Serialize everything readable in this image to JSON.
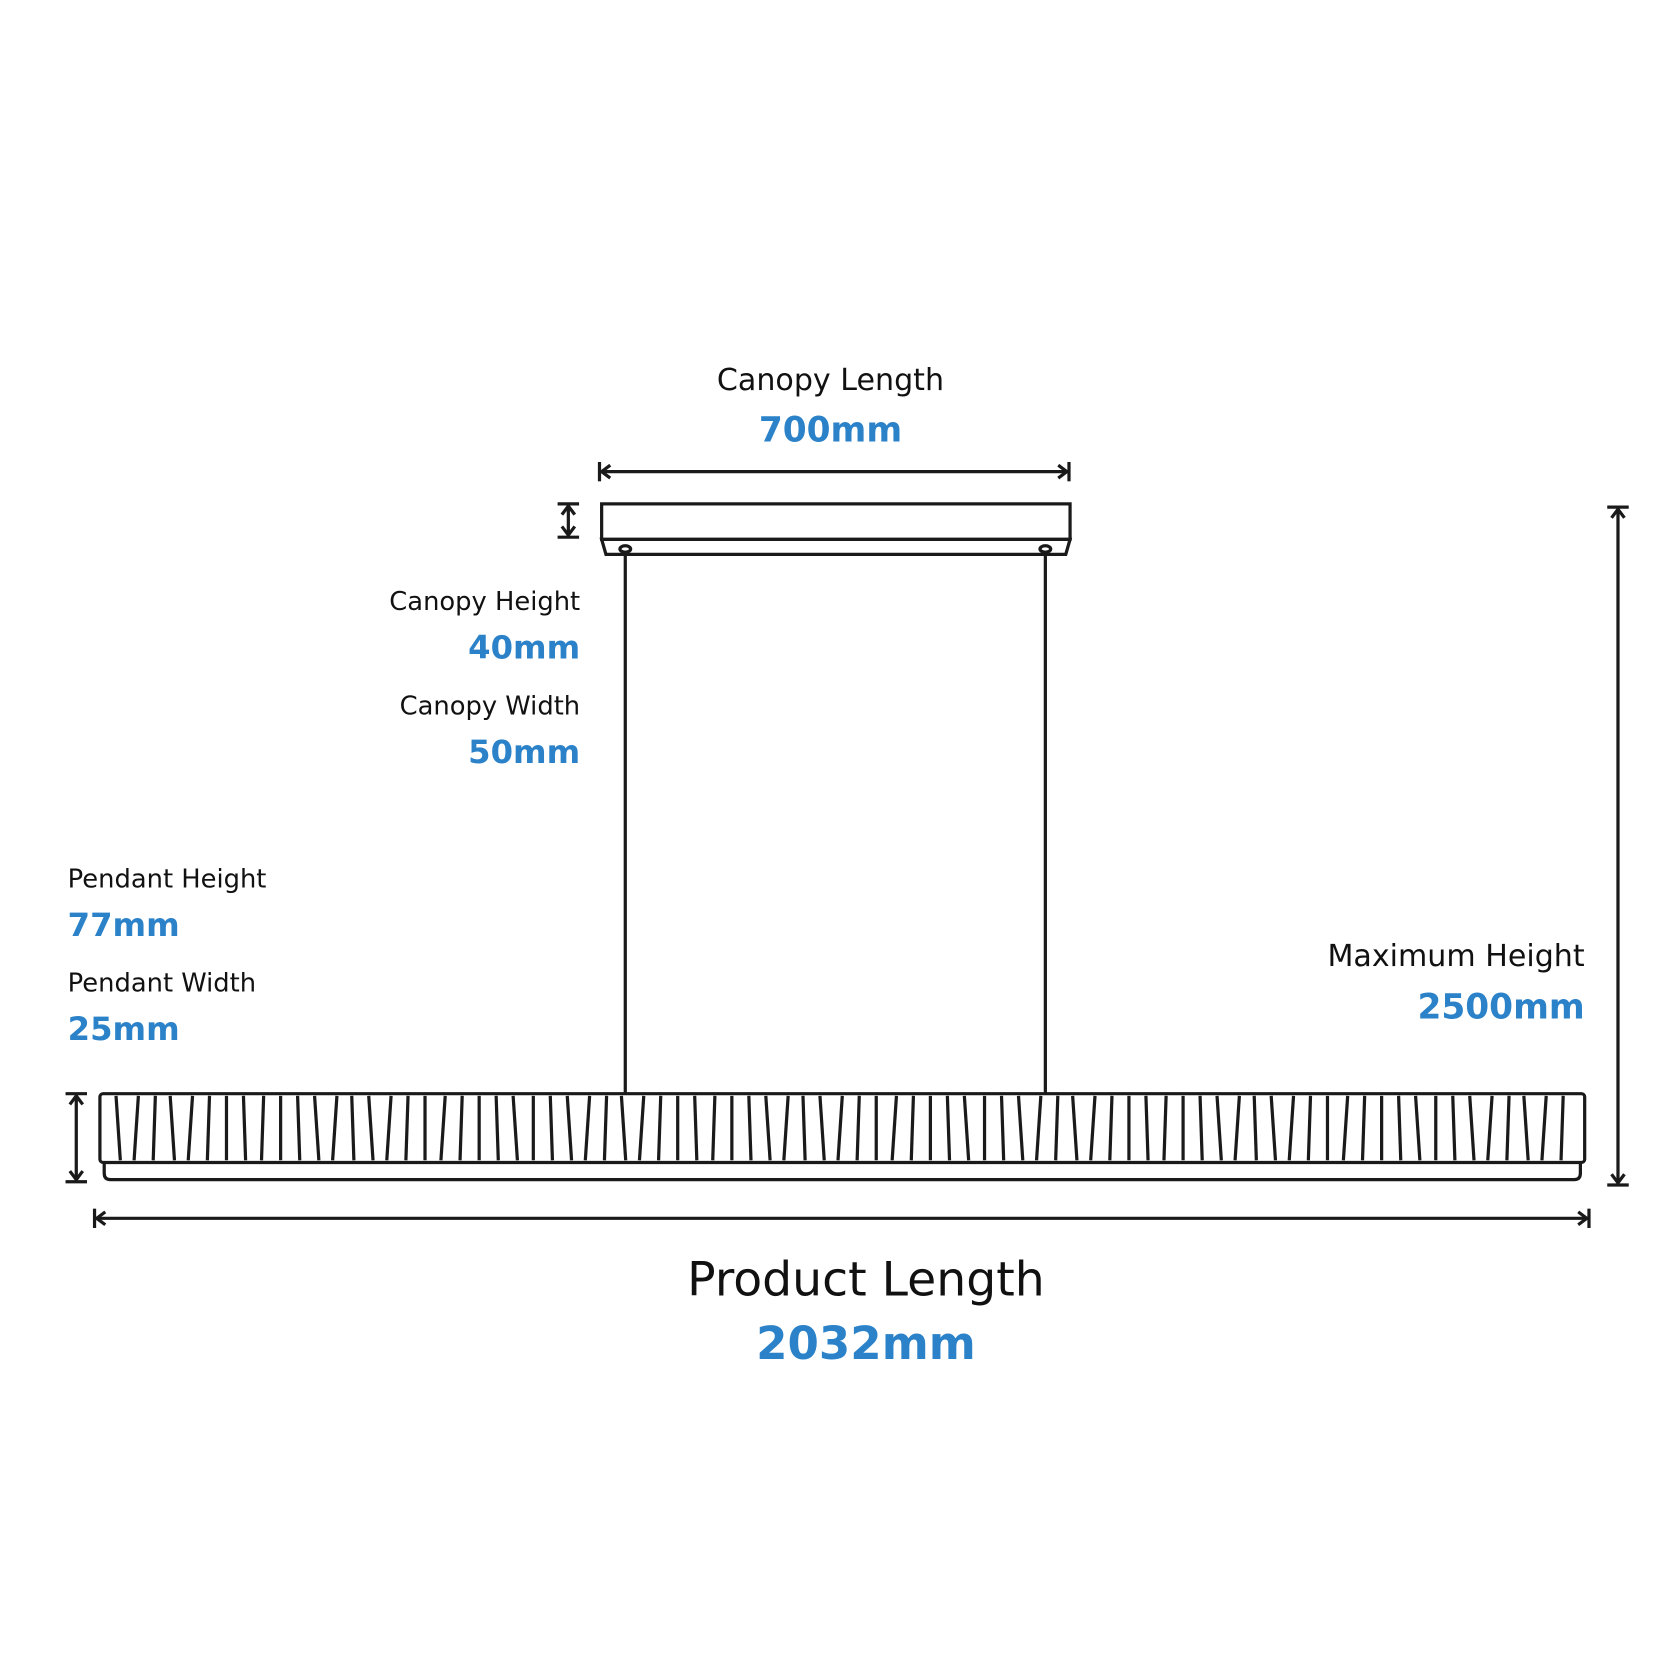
{
  "canopy_length": {
    "label": "Canopy Length",
    "value": "700mm"
  },
  "canopy_height": {
    "label": "Canopy Height",
    "value": "40mm"
  },
  "canopy_width": {
    "label": "Canopy Width",
    "value": "50mm"
  },
  "pendant_height": {
    "label": "Pendant Height",
    "value": "77mm"
  },
  "pendant_width": {
    "label": "Pendant Width",
    "value": "25mm"
  },
  "maximum_height": {
    "label": "Maximum Height",
    "value": "2500mm"
  },
  "product_length": {
    "label": "Product Length",
    "value": "2032mm"
  }
}
